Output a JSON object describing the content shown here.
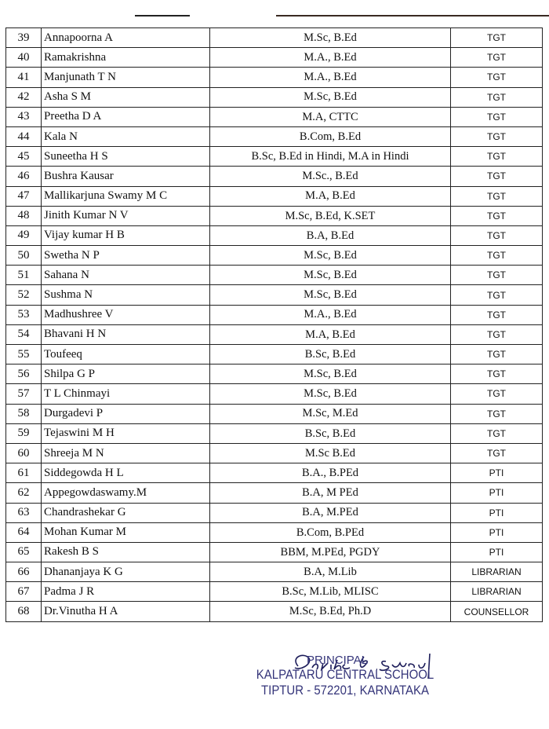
{
  "staff": [
    {
      "sl": "39",
      "name": "Annapoorna A",
      "qualification": "M.Sc,  B.Ed",
      "designation": "TGT"
    },
    {
      "sl": "40",
      "name": "Ramakrishna",
      "qualification": "M.A., B.Ed",
      "designation": "TGT"
    },
    {
      "sl": "41",
      "name": "Manjunath T N",
      "qualification": "M.A., B.Ed",
      "designation": "TGT"
    },
    {
      "sl": "42",
      "name": "Asha S M",
      "qualification": "M.Sc,  B.Ed",
      "designation": "TGT"
    },
    {
      "sl": "43",
      "name": "Preetha D A",
      "qualification": "M.A, CTTC",
      "designation": "TGT"
    },
    {
      "sl": "44",
      "name": "Kala N",
      "qualification": "B.Com, B.Ed",
      "designation": "TGT"
    },
    {
      "sl": "45",
      "name": "Suneetha H S",
      "qualification": "B.Sc, B.Ed in Hindi,  M.A in Hindi",
      "designation": "TGT"
    },
    {
      "sl": "46",
      "name": "Bushra Kausar",
      "qualification": "M.Sc., B.Ed",
      "designation": "TGT"
    },
    {
      "sl": "47",
      "name": "Mallikarjuna Swamy M C",
      "qualification": "M.A, B.Ed",
      "designation": "TGT"
    },
    {
      "sl": "48",
      "name": "Jinith Kumar N V",
      "qualification": "M.Sc, B.Ed, K.SET",
      "designation": "TGT"
    },
    {
      "sl": "49",
      "name": "Vijay kumar H B",
      "qualification": "B.A, B.Ed",
      "designation": "TGT"
    },
    {
      "sl": "50",
      "name": "Swetha N P",
      "qualification": "M.Sc, B.Ed",
      "designation": "TGT"
    },
    {
      "sl": "51",
      "name": "Sahana N",
      "qualification": "M.Sc, B.Ed",
      "designation": "TGT"
    },
    {
      "sl": "52",
      "name": "Sushma N",
      "qualification": "M.Sc, B.Ed",
      "designation": "TGT"
    },
    {
      "sl": "53",
      "name": "Madhushree V",
      "qualification": "M.A.,  B.Ed",
      "designation": "TGT"
    },
    {
      "sl": "54",
      "name": "Bhavani H N",
      "qualification": "M.A, B.Ed",
      "designation": "TGT"
    },
    {
      "sl": "55",
      "name": "Toufeeq",
      "qualification": "B.Sc, B.Ed",
      "designation": "TGT"
    },
    {
      "sl": "56",
      "name": "Shilpa G P",
      "qualification": "M.Sc, B.Ed",
      "designation": "TGT"
    },
    {
      "sl": "57",
      "name": "T L Chinmayi",
      "qualification": "M.Sc, B.Ed",
      "designation": "TGT"
    },
    {
      "sl": "58",
      "name": "Durgadevi P",
      "qualification": "M.Sc, M.Ed",
      "designation": "TGT"
    },
    {
      "sl": "59",
      "name": "Tejaswini M H",
      "qualification": "B.Sc, B.Ed",
      "designation": "TGT"
    },
    {
      "sl": "60",
      "name": "Shreeja M N",
      "qualification": "M.Sc B.Ed",
      "designation": "TGT"
    },
    {
      "sl": "61",
      "name": "Siddegowda H L",
      "qualification": "B.A., B.PEd",
      "designation": "PTI"
    },
    {
      "sl": "62",
      "name": "Appegowdaswamy.M",
      "qualification": "B.A, M PEd",
      "designation": "PTI"
    },
    {
      "sl": "63",
      "name": "Chandrashekar G",
      "qualification": "B.A, M.PEd",
      "designation": "PTI"
    },
    {
      "sl": "64",
      "name": "Mohan Kumar M",
      "qualification": "B.Com, B.PEd",
      "designation": "PTI"
    },
    {
      "sl": "65",
      "name": "Rakesh B S",
      "qualification": "BBM, M.PEd, PGDY",
      "designation": "PTI"
    },
    {
      "sl": "66",
      "name": "Dhananjaya K G",
      "qualification": "B.A, M.Lib",
      "designation": "LIBRARIAN"
    },
    {
      "sl": "67",
      "name": "Padma J R",
      "qualification": "B.Sc, M.Lib, MLISC",
      "designation": "LIBRARIAN"
    },
    {
      "sl": "68",
      "name": "Dr.Vinutha H A",
      "qualification": "M.Sc, B.Ed, Ph.D",
      "designation": "COUNSELLOR"
    }
  ],
  "stamp": {
    "signature": "Devika B. Swamy",
    "title": "PRINCIPAL",
    "school": "KALPATARU CENTRAL SCHOOL",
    "address": "TIPTUR - 572201, KARNATAKA",
    "color": "#35357a"
  }
}
